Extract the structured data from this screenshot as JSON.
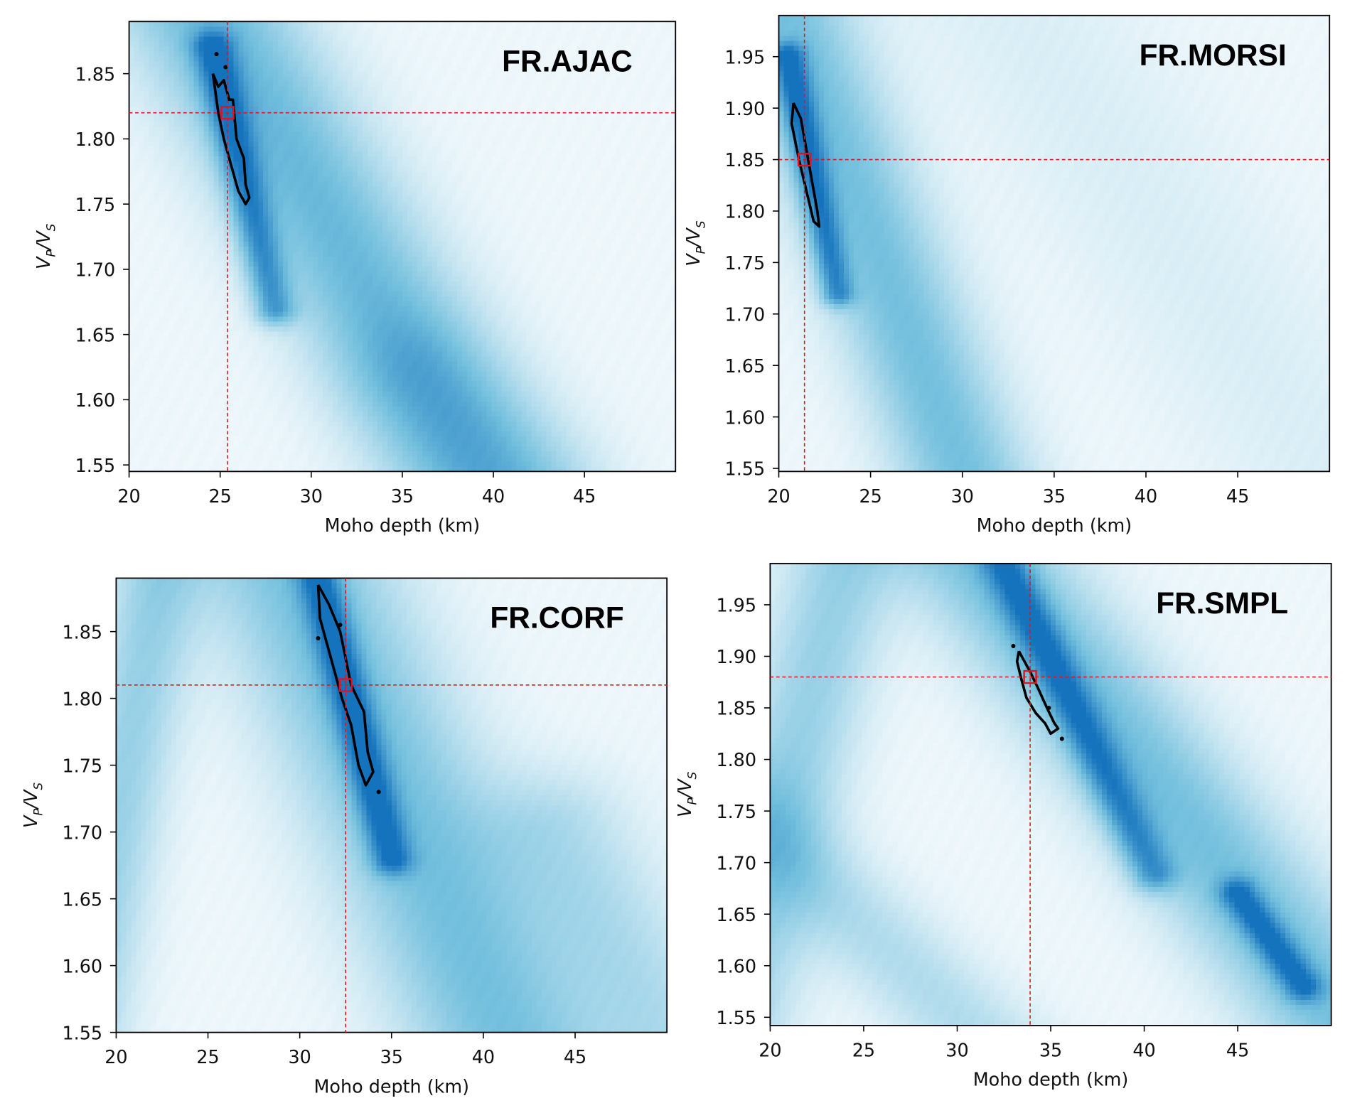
{
  "chart_data": [
    {
      "type": "heatmap",
      "title": "FR.AJAC",
      "xlabel": "Moho depth (km)",
      "ylabel": "V_P/V_S",
      "xlim": [
        20,
        50
      ],
      "ylim": [
        1.545,
        1.89
      ],
      "xticks": [
        "20",
        "25",
        "30",
        "35",
        "40",
        "45"
      ],
      "yticks": [
        "1.55",
        "1.60",
        "1.65",
        "1.70",
        "1.75",
        "1.80",
        "1.85"
      ],
      "best": {
        "x": 25.4,
        "y": 1.82
      },
      "ridges": [
        {
          "from": [
            22,
            1.95
          ],
          "to": [
            40,
            1.52
          ],
          "width_km": 4.5,
          "strength": 0.55,
          "extend": true
        },
        {
          "from": [
            24.6,
            1.87
          ],
          "to": [
            28.0,
            1.67
          ],
          "width_km": 1.1,
          "strength": 0.6,
          "extend": false
        },
        {
          "from": [
            36,
            1.62
          ],
          "to": [
            42,
            1.54
          ],
          "width_km": 4,
          "strength": 0.15,
          "extend": false
        }
      ],
      "contour": [
        [
          24.6,
          1.85
        ],
        [
          24.9,
          1.84
        ],
        [
          25.2,
          1.845
        ],
        [
          25.5,
          1.83
        ],
        [
          25.7,
          1.83
        ],
        [
          25.9,
          1.8
        ],
        [
          26.3,
          1.785
        ],
        [
          26.4,
          1.765
        ],
        [
          26.6,
          1.755
        ],
        [
          26.4,
          1.75
        ],
        [
          26.0,
          1.76
        ],
        [
          25.6,
          1.78
        ],
        [
          25.2,
          1.8
        ],
        [
          24.9,
          1.82
        ],
        [
          24.6,
          1.85
        ]
      ],
      "dots": [
        [
          24.8,
          1.865
        ],
        [
          25.3,
          1.855
        ]
      ]
    },
    {
      "type": "heatmap",
      "title": "FR.MORSI",
      "xlabel": "Moho depth (km)",
      "ylabel": "V_P/V_S",
      "xlim": [
        20,
        50
      ],
      "ylim": [
        1.547,
        1.99
      ],
      "xticks": [
        "20",
        "25",
        "30",
        "35",
        "40",
        "45"
      ],
      "yticks": [
        "1.55",
        "1.60",
        "1.65",
        "1.70",
        "1.75",
        "1.80",
        "1.85",
        "1.90",
        "1.95"
      ],
      "best": {
        "x": 21.4,
        "y": 1.85
      },
      "ridges": [
        {
          "from": [
            20.3,
            1.99
          ],
          "to": [
            30,
            1.55
          ],
          "width_km": 3.5,
          "strength": 0.5,
          "extend": true
        },
        {
          "from": [
            20.5,
            1.95
          ],
          "to": [
            23.2,
            1.72
          ],
          "width_km": 0.9,
          "strength": 0.6,
          "extend": false
        },
        {
          "from": [
            33,
            1.99
          ],
          "to": [
            50,
            1.55
          ],
          "width_km": 6,
          "strength": 0.08,
          "extend": true
        }
      ],
      "contour": [
        [
          20.8,
          1.905
        ],
        [
          21.2,
          1.89
        ],
        [
          21.5,
          1.86
        ],
        [
          21.8,
          1.83
        ],
        [
          22.1,
          1.8
        ],
        [
          22.2,
          1.785
        ],
        [
          21.9,
          1.79
        ],
        [
          21.5,
          1.82
        ],
        [
          21.1,
          1.85
        ],
        [
          20.7,
          1.885
        ],
        [
          20.8,
          1.905
        ]
      ],
      "dots": []
    },
    {
      "type": "heatmap",
      "title": "FR.CORF",
      "xlabel": "Moho depth (km)",
      "ylabel": "V_P/V_S",
      "xlim": [
        20,
        50
      ],
      "ylim": [
        1.55,
        1.89
      ],
      "xticks": [
        "20",
        "25",
        "30",
        "35",
        "40",
        "45"
      ],
      "yticks": [
        "1.55",
        "1.60",
        "1.65",
        "1.70",
        "1.75",
        "1.80",
        "1.85"
      ],
      "best": {
        "x": 32.5,
        "y": 1.81
      },
      "ridges": [
        {
          "from": [
            28,
            1.95
          ],
          "to": [
            42,
            1.52
          ],
          "width_km": 5,
          "strength": 0.5,
          "extend": true
        },
        {
          "from": [
            31,
            1.89
          ],
          "to": [
            35,
            1.68
          ],
          "width_km": 1.1,
          "strength": 0.6,
          "extend": false
        },
        {
          "from": [
            23,
            1.95
          ],
          "to": [
            18,
            1.55
          ],
          "width_km": 2.5,
          "strength": 0.35,
          "extend": true
        },
        {
          "from": [
            44,
            1.7
          ],
          "to": [
            50,
            1.55
          ],
          "width_km": 4,
          "strength": 0.25,
          "extend": false
        }
      ],
      "contour": [
        [
          31.0,
          1.885
        ],
        [
          31.6,
          1.87
        ],
        [
          32.2,
          1.85
        ],
        [
          32.8,
          1.81
        ],
        [
          33.5,
          1.79
        ],
        [
          33.7,
          1.76
        ],
        [
          34.0,
          1.745
        ],
        [
          33.6,
          1.735
        ],
        [
          33.2,
          1.75
        ],
        [
          32.8,
          1.78
        ],
        [
          32.3,
          1.8
        ],
        [
          31.7,
          1.83
        ],
        [
          31.1,
          1.86
        ],
        [
          31.0,
          1.885
        ]
      ],
      "dots": [
        [
          31.0,
          1.845
        ],
        [
          32.2,
          1.855
        ],
        [
          34.3,
          1.73
        ]
      ]
    },
    {
      "type": "heatmap",
      "title": "FR.SMPL",
      "xlabel": "Moho depth (km)",
      "ylabel": "V_P/V_S",
      "xlim": [
        20,
        50
      ],
      "ylim": [
        1.542,
        1.99
      ],
      "xticks": [
        "20",
        "25",
        "30",
        "35",
        "40",
        "45"
      ],
      "yticks": [
        "1.55",
        "1.60",
        "1.65",
        "1.70",
        "1.75",
        "1.80",
        "1.85",
        "1.90",
        "1.95"
      ],
      "best": {
        "x": 33.9,
        "y": 1.88
      },
      "ridges": [
        {
          "from": [
            31,
            2.0
          ],
          "to": [
            50,
            1.56
          ],
          "width_km": 4,
          "strength": 0.5,
          "extend": true
        },
        {
          "from": [
            32.5,
            1.99
          ],
          "to": [
            40.5,
            1.69
          ],
          "width_km": 1.2,
          "strength": 0.55,
          "extend": false
        },
        {
          "from": [
            45,
            1.67
          ],
          "to": [
            48.5,
            1.58
          ],
          "width_km": 1.0,
          "strength": 0.55,
          "extend": false
        },
        {
          "from": [
            24,
            2.0
          ],
          "to": [
            20,
            1.7
          ],
          "width_km": 3,
          "strength": 0.35,
          "extend": true
        },
        {
          "from": [
            26,
            1.62
          ],
          "to": [
            30,
            1.55
          ],
          "width_km": 3,
          "strength": 0.25,
          "extend": true
        }
      ],
      "contour": [
        [
          33.3,
          1.905
        ],
        [
          33.6,
          1.895
        ],
        [
          33.9,
          1.885
        ],
        [
          34.3,
          1.87
        ],
        [
          34.8,
          1.85
        ],
        [
          35.2,
          1.835
        ],
        [
          35.4,
          1.83
        ],
        [
          35.0,
          1.825
        ],
        [
          34.7,
          1.835
        ],
        [
          34.2,
          1.845
        ],
        [
          33.7,
          1.86
        ],
        [
          33.4,
          1.88
        ],
        [
          33.2,
          1.895
        ],
        [
          33.3,
          1.905
        ]
      ],
      "dots": [
        [
          33.0,
          1.91
        ],
        [
          35.6,
          1.82
        ],
        [
          34.9,
          1.85
        ]
      ]
    }
  ],
  "colors": {
    "low": "#f7fbfd",
    "mid": "#72bfdd",
    "high": "#1573bd",
    "best_marker": "#e0141e",
    "contour": "#000000"
  }
}
